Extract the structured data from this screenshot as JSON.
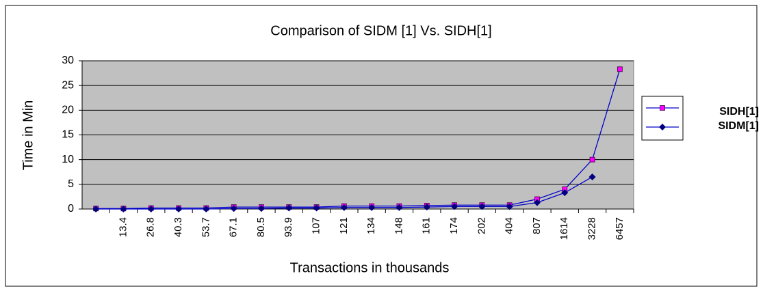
{
  "chart_data": {
    "type": "line",
    "title": "Comparison of SIDM [1] Vs. SIDH[1]",
    "x_label": "Transactions in thousands",
    "y_label": "Time in Min",
    "categories": [
      null,
      "13.4",
      "26.8",
      "40.3",
      "53.7",
      "67.1",
      "80.5",
      "93.9",
      "107",
      "121",
      "134",
      "148",
      "161",
      "174",
      "202",
      "404",
      "807",
      "1614",
      "3228",
      "6457"
    ],
    "series": [
      {
        "name": "SIDH[1]",
        "color": "#ff00ff",
        "line_color": "#0000cc",
        "marker": "square",
        "values": [
          0.1,
          0.1,
          0.2,
          0.2,
          0.2,
          0.4,
          0.4,
          0.4,
          0.4,
          0.6,
          0.6,
          0.6,
          0.7,
          0.8,
          0.8,
          0.8,
          2,
          4,
          10,
          28.3
        ]
      },
      {
        "name": "SIDM[1]",
        "color": "#000080",
        "line_color": "#0000cc",
        "marker": "diamond",
        "values": [
          0,
          0,
          0,
          0,
          0,
          0.1,
          0.1,
          0.2,
          0.2,
          0.3,
          0.3,
          0.3,
          0.4,
          0.5,
          0.5,
          0.5,
          1.3,
          3.3,
          6.5,
          null
        ]
      }
    ],
    "ylim": [
      0,
      30
    ],
    "yticks": [
      0,
      5,
      10,
      15,
      20,
      25,
      30
    ],
    "grid": true,
    "legend": "right",
    "plot_background": "#c0c0c0"
  }
}
